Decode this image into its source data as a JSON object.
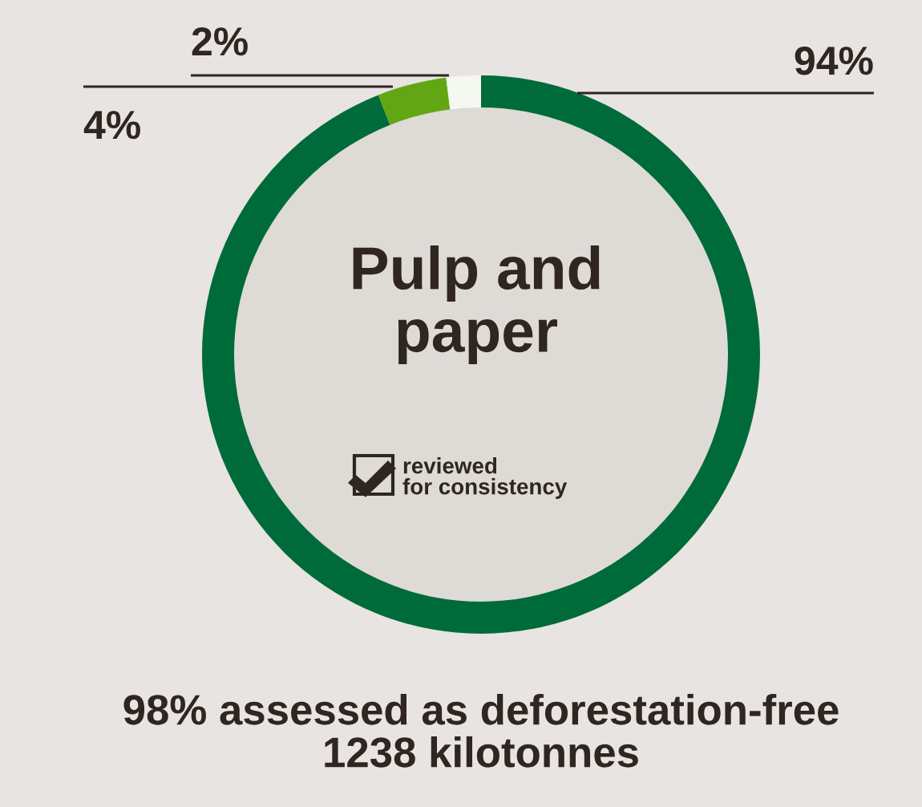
{
  "chart_data": {
    "type": "donut",
    "title": "Pulp and\npaper",
    "categories": [
      null,
      null,
      null
    ],
    "values": [
      94,
      4,
      2
    ],
    "colors": [
      "#006b3a",
      "#62a713",
      "#f5f8f0"
    ],
    "value_labels": [
      "94%",
      "4%",
      "2%"
    ],
    "annotations": [
      "reviewed\nfor consistency",
      "98% assessed as deforestation-free\n1238 kilotonnes"
    ]
  }
}
